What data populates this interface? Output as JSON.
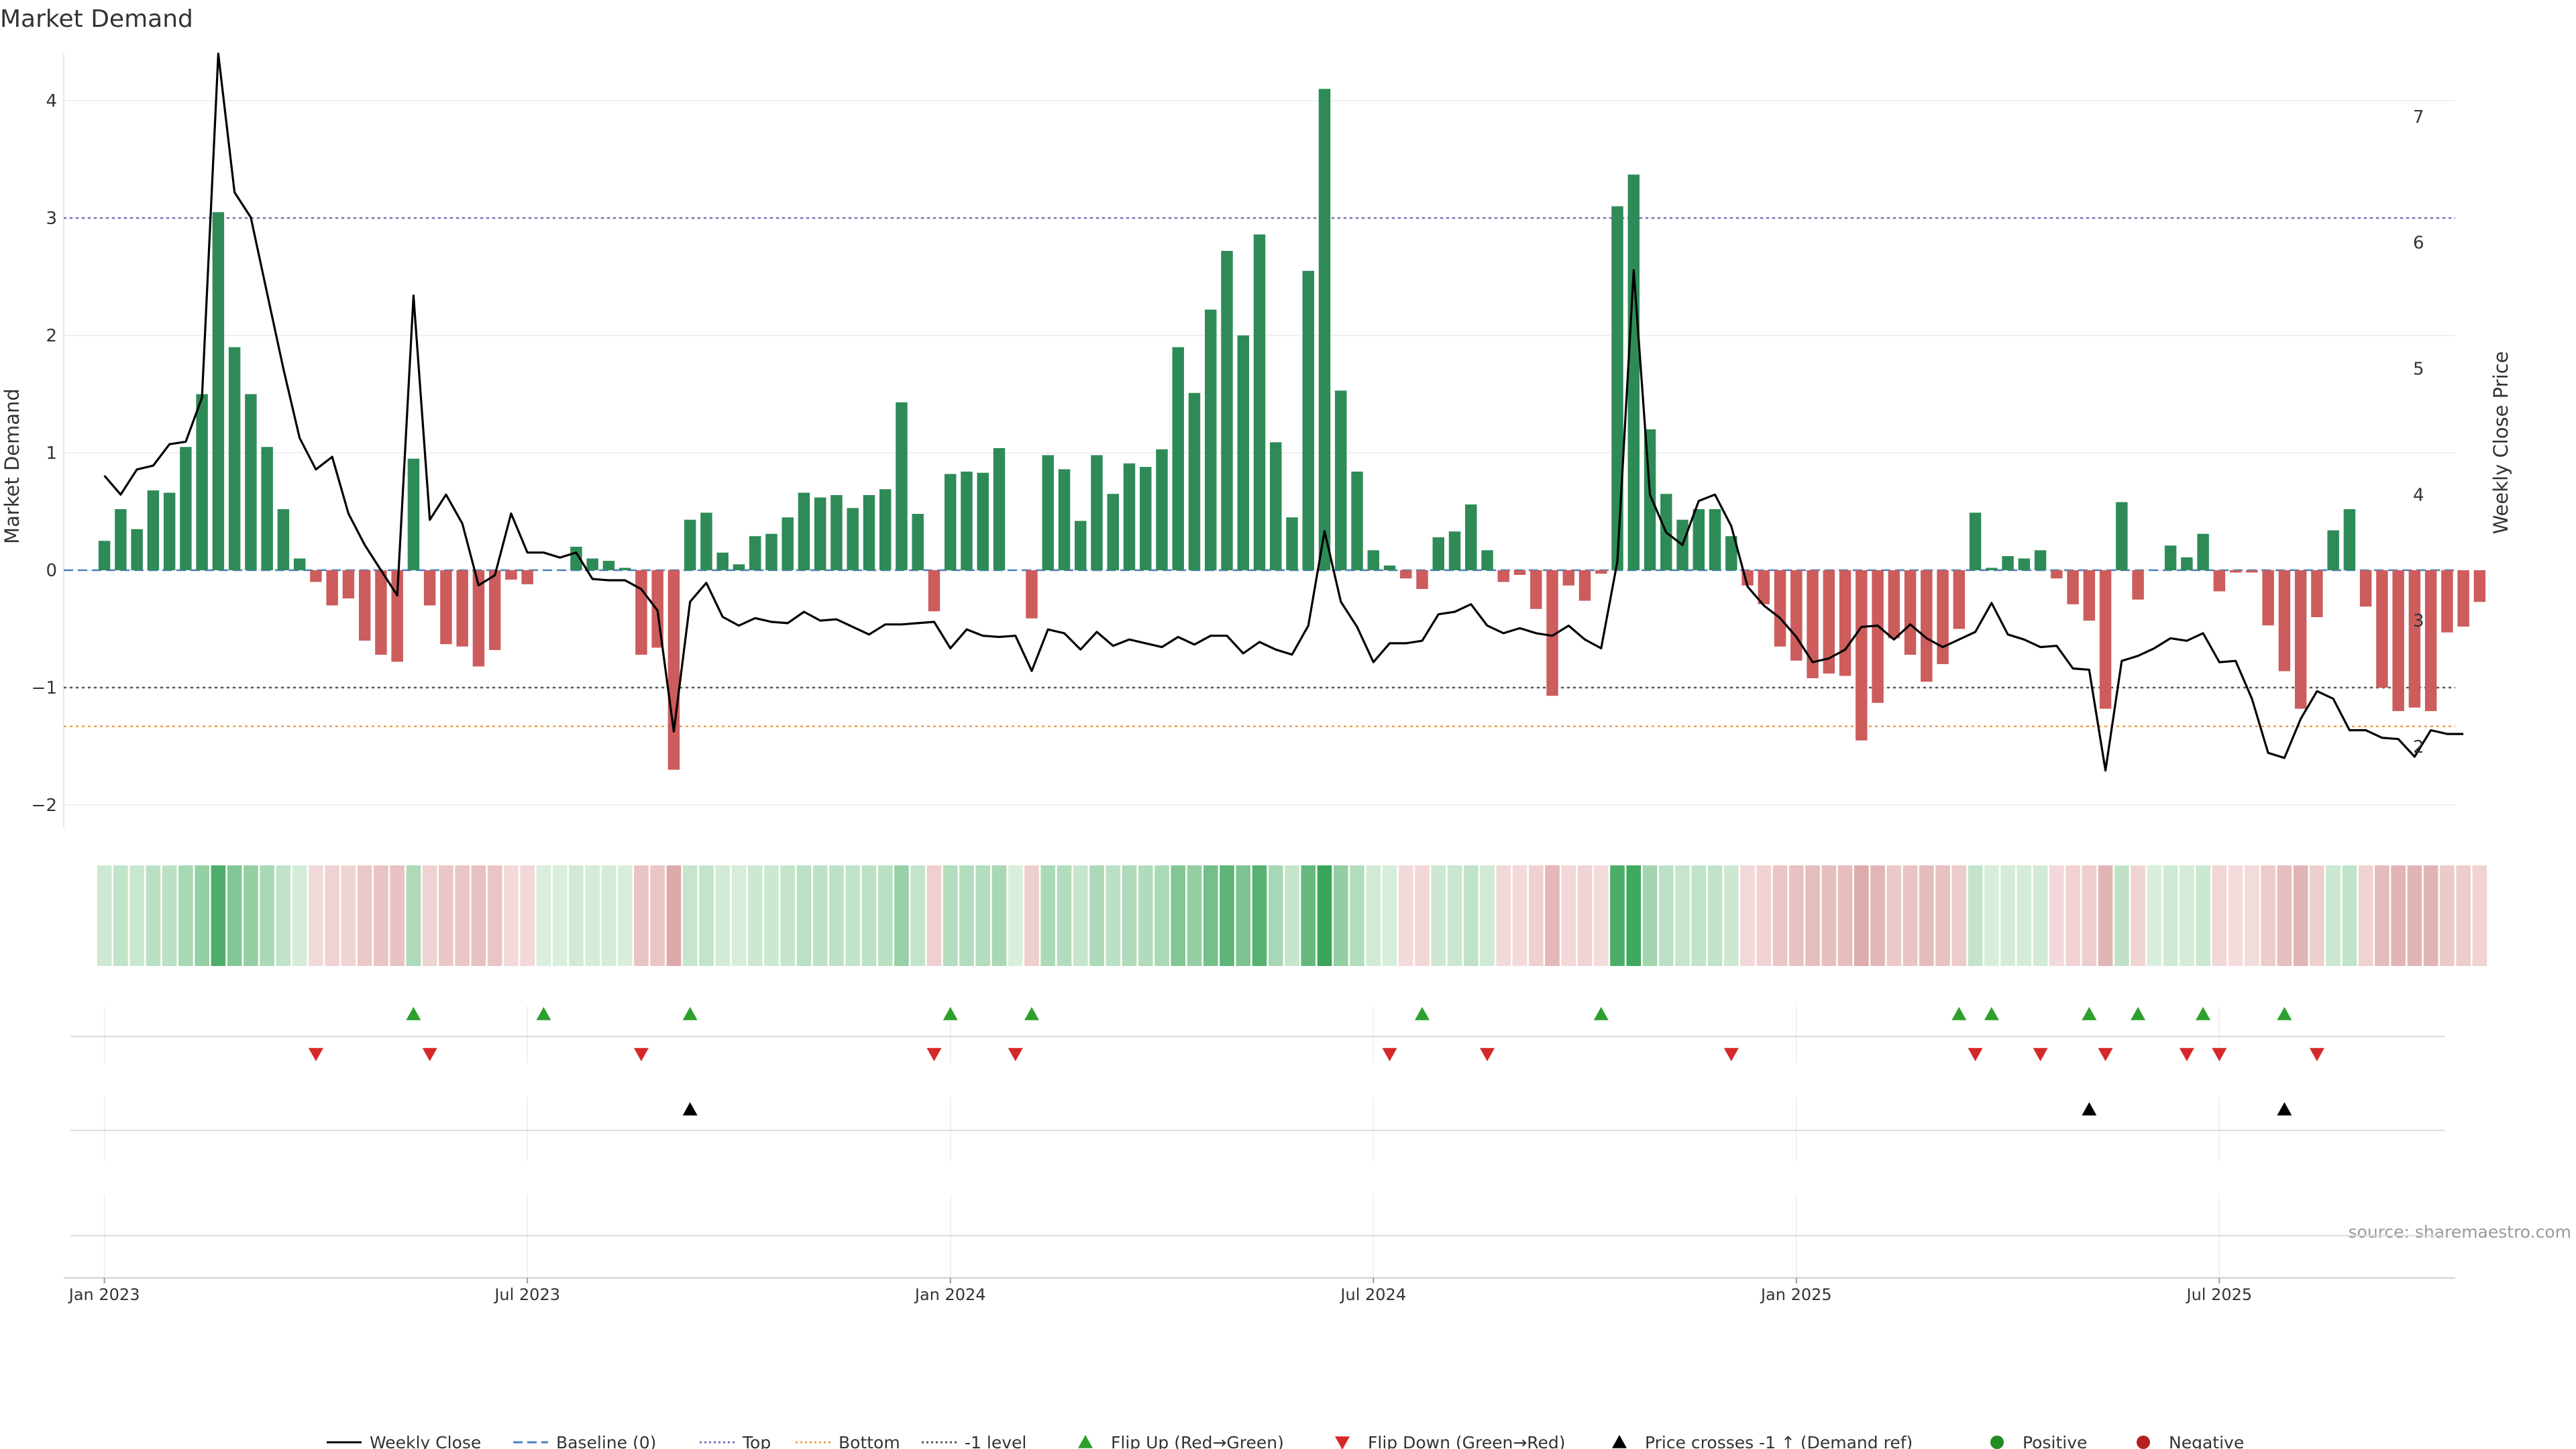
{
  "chart_data": {
    "type": "bar",
    "title": "Market Demand",
    "ylabel": "Market Demand",
    "y2label": "Weekly Close Price",
    "source": "source: sharemaestro.com",
    "ylim": [
      -2.2,
      4.4
    ],
    "y2lim": [
      1.35,
      7.5
    ],
    "yticks": [
      {
        "v": -2,
        "label": "−2"
      },
      {
        "v": -1,
        "label": "−1"
      },
      {
        "v": 0,
        "label": "0"
      },
      {
        "v": 1,
        "label": "1"
      },
      {
        "v": 2,
        "label": "2"
      },
      {
        "v": 3,
        "label": "3"
      },
      {
        "v": 4,
        "label": "4"
      }
    ],
    "y2ticks": [
      {
        "v": 2,
        "label": "2"
      },
      {
        "v": 3,
        "label": "3"
      },
      {
        "v": 4,
        "label": "4"
      },
      {
        "v": 5,
        "label": "5"
      },
      {
        "v": 6,
        "label": "6"
      },
      {
        "v": 7,
        "label": "7"
      }
    ],
    "xlim": [
      -2.5,
      144.5
    ],
    "xticks": [
      {
        "week": 0,
        "label": "Jan 2023"
      },
      {
        "week": 26,
        "label": "Jul 2023"
      },
      {
        "week": 52,
        "label": "Jan 2024"
      },
      {
        "week": 78,
        "label": "Jul 2024"
      },
      {
        "week": 104,
        "label": "Jan 2025"
      },
      {
        "week": 130,
        "label": "Jul 2025"
      }
    ],
    "reference_lines": [
      {
        "name": "Top",
        "value": 3,
        "color": "#7d6bb5"
      },
      {
        "name": "-1 level",
        "value": -1,
        "color": "#555555"
      },
      {
        "name": "Bottom",
        "value": -1.33,
        "color": "#f0a050"
      },
      {
        "name": "Baseline (0)",
        "value": 0,
        "color": "#4a7fc0"
      }
    ],
    "colors": {
      "positive": "#2e8b57",
      "negative": "#cd5c5c",
      "price": "#000000",
      "flip_up": "#2ca02c",
      "flip_down": "#d62728",
      "cross": "#000000"
    },
    "demand": [
      0.25,
      0.52,
      0.35,
      0.68,
      0.66,
      1.05,
      1.5,
      3.05,
      1.9,
      1.5,
      1.05,
      0.52,
      0.1,
      -0.1,
      -0.3,
      -0.24,
      -0.6,
      -0.72,
      -0.78,
      0.95,
      -0.3,
      -0.63,
      -0.65,
      -0.82,
      -0.68,
      -0.08,
      -0.12,
      0.0,
      0.0,
      0.2,
      0.1,
      0.08,
      0.02,
      -0.72,
      -0.66,
      -1.7,
      0.43,
      0.49,
      0.15,
      0.05,
      0.29,
      0.31,
      0.45,
      0.66,
      0.62,
      0.64,
      0.53,
      0.64,
      0.69,
      1.43,
      0.48,
      -0.35,
      0.82,
      0.84,
      0.83,
      1.04,
      0.0,
      -0.41,
      0.98,
      0.86,
      0.42,
      0.98,
      0.65,
      0.91,
      0.88,
      1.03,
      1.9,
      1.51,
      2.22,
      2.72,
      2.0,
      2.86,
      1.09,
      0.45,
      2.55,
      4.1,
      1.53,
      0.84,
      0.17,
      0.04,
      -0.07,
      -0.16,
      0.28,
      0.33,
      0.56,
      0.17,
      -0.1,
      -0.04,
      -0.33,
      -1.07,
      -0.13,
      -0.26,
      -0.03,
      3.1,
      3.37,
      1.2,
      0.65,
      0.43,
      0.52,
      0.52,
      0.29,
      -0.13,
      -0.29,
      -0.65,
      -0.77,
      -0.92,
      -0.88,
      -0.9,
      -1.45,
      -1.13,
      -0.58,
      -0.72,
      -0.95,
      -0.8,
      -0.5,
      0.49,
      0.02,
      0.12,
      0.1,
      0.17,
      -0.07,
      -0.29,
      -0.43,
      -1.18,
      0.58,
      -0.25,
      0.0,
      0.21,
      0.11,
      0.31,
      -0.18,
      -0.02,
      -0.02,
      -0.47,
      -0.86,
      -1.18,
      -0.4,
      0.34,
      0.52,
      -0.31,
      -1.0,
      -1.2,
      -1.17,
      -1.2,
      -0.53,
      -0.48,
      -0.27
    ],
    "price": [
      4.15,
      4.0,
      4.2,
      4.23,
      4.4,
      4.42,
      4.77,
      7.5,
      6.4,
      6.2,
      5.6,
      5.0,
      4.45,
      4.2,
      4.3,
      3.85,
      3.6,
      3.4,
      3.2,
      5.58,
      3.8,
      4.0,
      3.77,
      3.28,
      3.36,
      3.85,
      3.54,
      3.54,
      3.5,
      3.54,
      3.33,
      3.32,
      3.32,
      3.25,
      3.08,
      2.12,
      3.15,
      3.3,
      3.03,
      2.96,
      3.02,
      2.99,
      2.98,
      3.07,
      3.0,
      3.01,
      2.95,
      2.89,
      2.97,
      2.97,
      2.98,
      2.99,
      2.78,
      2.93,
      2.88,
      2.87,
      2.88,
      2.6,
      2.93,
      2.9,
      2.77,
      2.91,
      2.8,
      2.85,
      2.82,
      2.79,
      2.87,
      2.81,
      2.88,
      2.88,
      2.74,
      2.83,
      2.77,
      2.73,
      2.96,
      3.71,
      3.15,
      2.95,
      2.67,
      2.82,
      2.82,
      2.84,
      3.05,
      3.07,
      3.13,
      2.96,
      2.9,
      2.94,
      2.9,
      2.88,
      2.96,
      2.85,
      2.78,
      3.47,
      5.78,
      4.0,
      3.7,
      3.6,
      3.95,
      4.0,
      3.75,
      3.27,
      3.12,
      3.02,
      2.87,
      2.67,
      2.7,
      2.77,
      2.95,
      2.96,
      2.85,
      2.97,
      2.86,
      2.79,
      2.85,
      2.91,
      3.14,
      2.89,
      2.85,
      2.79,
      2.8,
      2.62,
      2.61,
      1.81,
      2.68,
      2.72,
      2.78,
      2.86,
      2.84,
      2.9,
      2.67,
      2.68,
      2.38,
      1.95,
      1.91,
      2.22,
      2.44,
      2.38,
      2.13,
      2.13,
      2.07,
      2.06,
      1.92,
      2.13,
      2.1,
      2.1
    ],
    "flip_up_weeks": [
      19,
      27,
      36,
      52,
      57,
      81,
      92,
      114,
      116,
      122,
      125,
      129,
      134
    ],
    "flip_down_weeks": [
      13,
      20,
      33,
      51,
      56,
      79,
      85,
      100,
      115,
      119,
      123,
      128,
      130,
      136
    ],
    "cross_up_weeks": [
      36,
      122,
      134
    ],
    "legend": [
      {
        "kind": "line",
        "label": "Weekly Close",
        "color": "#000000",
        "dash": ""
      },
      {
        "kind": "line",
        "label": "Baseline (0)",
        "color": "#4a7fc0",
        "dash": "14,7"
      },
      {
        "kind": "line",
        "label": "Top",
        "color": "#7d6bb5",
        "dash": "3,4"
      },
      {
        "kind": "line",
        "label": "Bottom",
        "color": "#f0a050",
        "dash": "3,4"
      },
      {
        "kind": "line",
        "label": "-1 level",
        "color": "#555555",
        "dash": "3,4"
      },
      {
        "kind": "tri-up",
        "label": "Flip Up (Red→Green)",
        "color": "#2ca02c"
      },
      {
        "kind": "tri-down",
        "label": "Flip Down (Green→Red)",
        "color": "#d62728"
      },
      {
        "kind": "tri-up",
        "label": "Price crosses -1 ↑ (Demand ref)",
        "color": "#000000"
      },
      {
        "kind": "dot",
        "label": "Positive",
        "color": "#228b22"
      },
      {
        "kind": "dot",
        "label": "Negative",
        "color": "#b22222"
      }
    ]
  }
}
